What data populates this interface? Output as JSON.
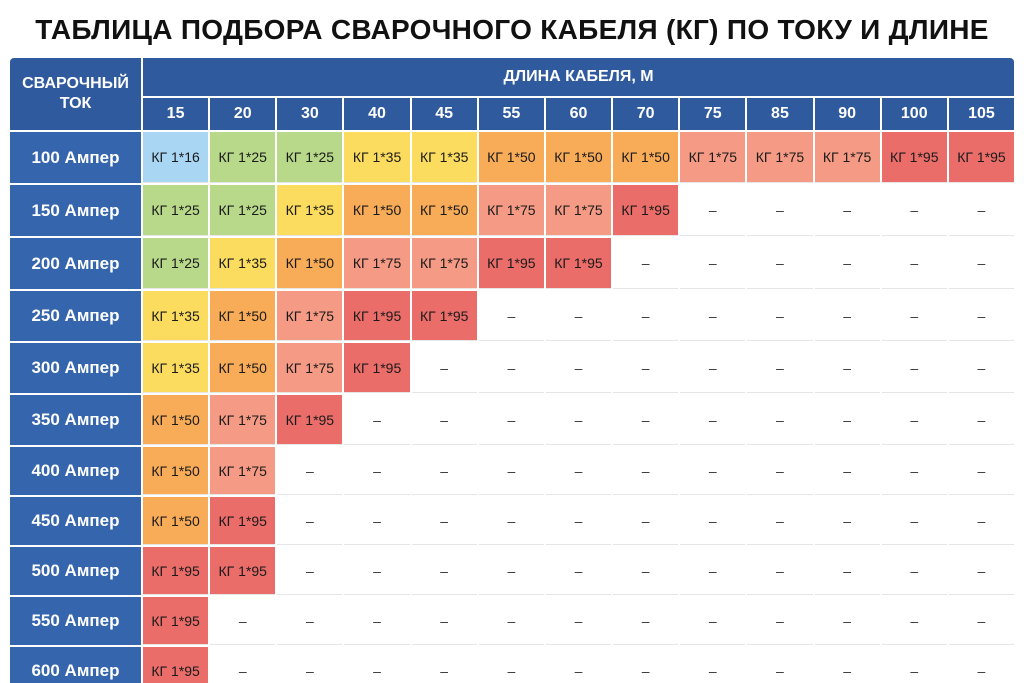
{
  "title": "ТАБЛИЦА ПОДБОРА СВАРОЧНОГО КАБЕЛЯ (КГ) ПО ТОКУ И ДЛИНЕ",
  "corner_label": "СВАРОЧНЫЙ ТОК",
  "length_header": "ДЛИНА КАБЕЛЯ, М",
  "lengths": [
    "15",
    "20",
    "30",
    "40",
    "45",
    "55",
    "60",
    "70",
    "75",
    "85",
    "90",
    "100",
    "105"
  ],
  "colors": {
    "header": "#2f5a9e",
    "КГ 1*16": "#a9d6f3",
    "КГ 1*25": "#b8d98a",
    "КГ 1*35": "#fbdc5e",
    "КГ 1*50": "#f9ac58",
    "КГ 1*75": "#f59a84",
    "КГ 1*95": "#ea6d69"
  },
  "rows": [
    {
      "current": "100 Ампер",
      "cells": [
        "КГ 1*16",
        "КГ 1*25",
        "КГ 1*25",
        "КГ 1*35",
        "КГ 1*35",
        "КГ 1*50",
        "КГ 1*50",
        "КГ 1*50",
        "КГ 1*75",
        "КГ 1*75",
        "КГ 1*75",
        "КГ 1*95",
        "КГ 1*95"
      ]
    },
    {
      "current": "150 Ампер",
      "cells": [
        "КГ 1*25",
        "КГ 1*25",
        "КГ 1*35",
        "КГ 1*50",
        "КГ 1*50",
        "КГ 1*75",
        "КГ 1*75",
        "КГ 1*95",
        "–",
        "–",
        "–",
        "–",
        "–"
      ]
    },
    {
      "current": "200 Ампер",
      "cells": [
        "КГ 1*25",
        "КГ 1*35",
        "КГ 1*50",
        "КГ 1*75",
        "КГ 1*75",
        "КГ 1*95",
        "КГ 1*95",
        "–",
        "–",
        "–",
        "–",
        "–",
        "–"
      ]
    },
    {
      "current": "250 Ампер",
      "cells": [
        "КГ 1*35",
        "КГ 1*50",
        "КГ 1*75",
        "КГ 1*95",
        "КГ 1*95",
        "–",
        "–",
        "–",
        "–",
        "–",
        "–",
        "–",
        "–"
      ]
    },
    {
      "current": "300 Ампер",
      "cells": [
        "КГ 1*35",
        "КГ 1*50",
        "КГ 1*75",
        "КГ 1*95",
        "–",
        "–",
        "–",
        "–",
        "–",
        "–",
        "–",
        "–",
        "–"
      ]
    },
    {
      "current": "350 Ампер",
      "cells": [
        "КГ 1*50",
        "КГ 1*75",
        "КГ 1*95",
        "–",
        "–",
        "–",
        "–",
        "–",
        "–",
        "–",
        "–",
        "–",
        "–"
      ]
    },
    {
      "current": "400 Ампер",
      "cells": [
        "КГ 1*50",
        "КГ 1*75",
        "–",
        "–",
        "–",
        "–",
        "–",
        "–",
        "–",
        "–",
        "–",
        "–",
        "–"
      ]
    },
    {
      "current": "450 Ампер",
      "cells": [
        "КГ 1*50",
        "КГ 1*95",
        "–",
        "–",
        "–",
        "–",
        "–",
        "–",
        "–",
        "–",
        "–",
        "–",
        "–"
      ]
    },
    {
      "current": "500 Ампер",
      "cells": [
        "КГ 1*95",
        "КГ 1*95",
        "–",
        "–",
        "–",
        "–",
        "–",
        "–",
        "–",
        "–",
        "–",
        "–",
        "–"
      ]
    },
    {
      "current": "550 Ампер",
      "cells": [
        "КГ 1*95",
        "–",
        "–",
        "–",
        "–",
        "–",
        "–",
        "–",
        "–",
        "–",
        "–",
        "–",
        "–"
      ]
    },
    {
      "current": "600 Ампер",
      "cells": [
        "КГ 1*95",
        "–",
        "–",
        "–",
        "–",
        "–",
        "–",
        "–",
        "–",
        "–",
        "–",
        "–",
        "–"
      ]
    }
  ]
}
